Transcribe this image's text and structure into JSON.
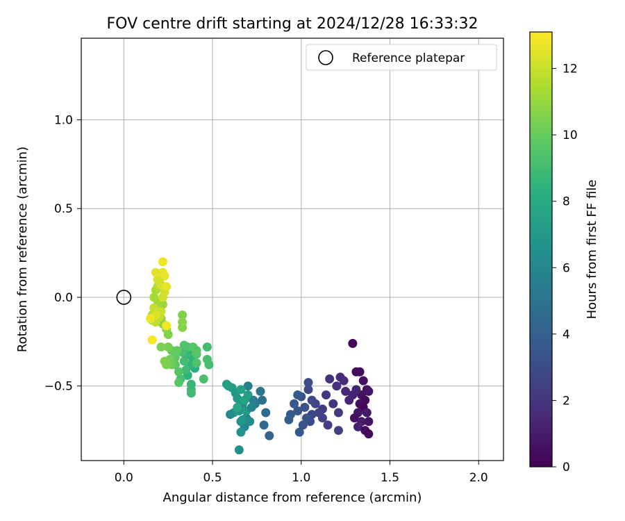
{
  "chart_data": {
    "type": "scatter",
    "title": "FOV centre drift starting at 2024/12/28 16:33:32",
    "xlabel": "Angular distance from reference (arcmin)",
    "ylabel": "Rotation from reference (arcmin)",
    "xlim": [
      -0.24,
      2.14
    ],
    "ylim": [
      -0.92,
      1.46
    ],
    "xticks": [
      "0.0",
      "0.5",
      "1.0",
      "1.5",
      "2.0"
    ],
    "yticks": [
      "−0.5",
      "0.0",
      "0.5",
      "1.0"
    ],
    "grid": true,
    "colormap": "viridis",
    "colorbar": {
      "label": "Hours from first FF file",
      "range": [
        0,
        13.1
      ],
      "ticks": [
        "0",
        "2",
        "4",
        "6",
        "8",
        "10",
        "12"
      ]
    },
    "legend": {
      "position": "top-right",
      "entries": [
        {
          "label": "Reference platepar",
          "marker": "open-circle"
        }
      ]
    },
    "reference_point": {
      "x": 0.0,
      "y": 0.0
    },
    "points": [
      [
        1.29,
        -0.26,
        0.2
      ],
      [
        1.31,
        -0.42,
        0.3
      ],
      [
        1.33,
        -0.42,
        0.4
      ],
      [
        1.35,
        -0.47,
        0.5
      ],
      [
        1.37,
        -0.52,
        0.4
      ],
      [
        1.34,
        -0.55,
        0.6
      ],
      [
        1.36,
        -0.58,
        0.3
      ],
      [
        1.38,
        -0.53,
        0.7
      ],
      [
        1.33,
        -0.6,
        0.5
      ],
      [
        1.35,
        -0.62,
        0.2
      ],
      [
        1.32,
        -0.65,
        0.8
      ],
      [
        1.37,
        -0.65,
        0.9
      ],
      [
        1.3,
        -0.68,
        0.6
      ],
      [
        1.34,
        -0.7,
        1.0
      ],
      [
        1.38,
        -0.7,
        0.7
      ],
      [
        1.32,
        -0.73,
        1.1
      ],
      [
        1.36,
        -0.75,
        0.4
      ],
      [
        1.38,
        -0.77,
        0.3
      ],
      [
        1.29,
        -0.55,
        1.2
      ],
      [
        1.31,
        -0.52,
        1.3
      ],
      [
        1.27,
        -0.58,
        1.4
      ],
      [
        1.25,
        -0.53,
        1.5
      ],
      [
        1.24,
        -0.47,
        1.6
      ],
      [
        1.22,
        -0.45,
        1.7
      ],
      [
        1.2,
        -0.5,
        1.8
      ],
      [
        1.16,
        -0.46,
        1.9
      ],
      [
        1.18,
        -0.6,
        2.0
      ],
      [
        1.14,
        -0.55,
        2.1
      ],
      [
        1.21,
        -0.65,
        2.2
      ],
      [
        1.12,
        -0.63,
        2.3
      ],
      [
        1.15,
        -0.72,
        2.4
      ],
      [
        1.21,
        -0.75,
        2.5
      ],
      [
        1.1,
        -0.65,
        2.6
      ],
      [
        1.08,
        -0.6,
        2.7
      ],
      [
        1.06,
        -0.66,
        2.8
      ],
      [
        1.05,
        -0.7,
        2.9
      ],
      [
        1.04,
        -0.52,
        3.0
      ],
      [
        1.04,
        -0.48,
        3.1
      ],
      [
        1.02,
        -0.62,
        3.2
      ],
      [
        1.03,
        -0.68,
        3.3
      ],
      [
        1.0,
        -0.56,
        3.4
      ],
      [
        0.98,
        -0.64,
        3.5
      ],
      [
        0.96,
        -0.6,
        3.6
      ],
      [
        0.99,
        -0.76,
        3.7
      ],
      [
        0.94,
        -0.66,
        3.8
      ],
      [
        0.93,
        -0.69,
        3.9
      ],
      [
        0.98,
        -0.55,
        3.7
      ],
      [
        1.01,
        -0.72,
        3.4
      ],
      [
        1.06,
        -0.58,
        2.9
      ],
      [
        1.12,
        -0.68,
        2.6
      ],
      [
        0.82,
        -0.78,
        4.2
      ],
      [
        0.79,
        -0.72,
        4.4
      ],
      [
        0.8,
        -0.65,
        4.6
      ],
      [
        0.78,
        -0.58,
        4.8
      ],
      [
        0.77,
        -0.53,
        5.0
      ],
      [
        0.74,
        -0.6,
        5.2
      ],
      [
        0.73,
        -0.58,
        5.4
      ],
      [
        0.7,
        -0.5,
        5.6
      ],
      [
        0.69,
        -0.68,
        5.8
      ],
      [
        0.68,
        -0.73,
        6.0
      ],
      [
        0.67,
        -0.6,
        6.2
      ],
      [
        0.66,
        -0.7,
        6.3
      ],
      [
        0.65,
        -0.86,
        6.5
      ],
      [
        0.66,
        -0.76,
        6.6
      ],
      [
        0.65,
        -0.64,
        6.7
      ],
      [
        0.63,
        -0.54,
        6.8
      ],
      [
        0.64,
        -0.57,
        6.9
      ],
      [
        0.62,
        -0.65,
        7.0
      ],
      [
        0.61,
        -0.51,
        7.1
      ],
      [
        0.58,
        -0.49,
        7.3
      ],
      [
        0.59,
        -0.5,
        7.4
      ],
      [
        0.66,
        -0.52,
        7.5
      ],
      [
        0.68,
        -0.58,
        7.6
      ],
      [
        0.69,
        -0.64,
        7.1
      ],
      [
        0.67,
        -0.69,
        6.9
      ],
      [
        0.71,
        -0.7,
        6.4
      ],
      [
        0.7,
        -0.55,
        7.2
      ],
      [
        0.64,
        -0.62,
        7.8
      ],
      [
        0.6,
        -0.66,
        6.1
      ],
      [
        0.72,
        -0.62,
        5.9
      ],
      [
        0.4,
        -0.4,
        8.2
      ],
      [
        0.39,
        -0.34,
        8.4
      ],
      [
        0.38,
        -0.3,
        8.6
      ],
      [
        0.37,
        -0.38,
        8.5
      ],
      [
        0.36,
        -0.44,
        8.3
      ],
      [
        0.35,
        -0.33,
        8.7
      ],
      [
        0.35,
        -0.41,
        8.9
      ],
      [
        0.34,
        -0.36,
        9.0
      ],
      [
        0.33,
        -0.31,
        9.1
      ],
      [
        0.32,
        -0.46,
        9.2
      ],
      [
        0.38,
        -0.52,
        8.8
      ],
      [
        0.38,
        -0.54,
        8.9
      ],
      [
        0.38,
        -0.49,
        8.7
      ],
      [
        0.36,
        -0.28,
        9.3
      ],
      [
        0.34,
        -0.27,
        9.4
      ],
      [
        0.31,
        -0.42,
        9.5
      ],
      [
        0.31,
        -0.48,
        9.6
      ],
      [
        0.29,
        -0.38,
        9.7
      ],
      [
        0.29,
        -0.34,
        9.8
      ],
      [
        0.3,
        -0.3,
        9.9
      ],
      [
        0.47,
        -0.28,
        9.0
      ],
      [
        0.48,
        -0.38,
        9.1
      ],
      [
        0.47,
        -0.35,
        9.2
      ],
      [
        0.45,
        -0.46,
        9.3
      ],
      [
        0.41,
        -0.32,
        9.4
      ],
      [
        0.41,
        -0.3,
        9.6
      ],
      [
        0.39,
        -0.28,
        9.5
      ],
      [
        0.41,
        -0.37,
        9.4
      ],
      [
        0.27,
        -0.3,
        10.0
      ],
      [
        0.27,
        -0.38,
        10.1
      ],
      [
        0.26,
        -0.35,
        10.2
      ],
      [
        0.25,
        -0.28,
        10.3
      ],
      [
        0.24,
        -0.38,
        10.4
      ],
      [
        0.23,
        -0.36,
        10.5
      ],
      [
        0.25,
        -0.21,
        10.6
      ],
      [
        0.24,
        -0.18,
        10.7
      ],
      [
        0.22,
        -0.15,
        10.8
      ],
      [
        0.21,
        -0.12,
        10.9
      ],
      [
        0.21,
        -0.28,
        10.4
      ],
      [
        0.33,
        -0.1,
        10.5
      ],
      [
        0.33,
        -0.17,
        10.6
      ],
      [
        0.33,
        -0.14,
        10.7
      ],
      [
        0.19,
        -0.08,
        10.8
      ],
      [
        0.2,
        -0.06,
        11.0
      ],
      [
        0.22,
        -0.04,
        11.1
      ],
      [
        0.19,
        -0.02,
        11.2
      ],
      [
        0.17,
        0.0,
        11.3
      ],
      [
        0.18,
        0.04,
        11.4
      ],
      [
        0.19,
        0.06,
        11.5
      ],
      [
        0.16,
        -0.1,
        11.6
      ],
      [
        0.16,
        -0.13,
        11.7
      ],
      [
        0.18,
        -0.14,
        11.8
      ],
      [
        0.2,
        -0.11,
        11.9
      ],
      [
        0.21,
        -0.08,
        12.0
      ],
      [
        0.22,
        0.0,
        12.1
      ],
      [
        0.23,
        0.03,
        12.2
      ],
      [
        0.21,
        0.07,
        12.3
      ],
      [
        0.19,
        0.1,
        12.4
      ],
      [
        0.21,
        0.12,
        12.5
      ],
      [
        0.22,
        0.14,
        12.6
      ],
      [
        0.23,
        0.12,
        12.7
      ],
      [
        0.22,
        0.2,
        12.8
      ],
      [
        0.24,
        -0.16,
        12.9
      ],
      [
        0.16,
        -0.24,
        13.0
      ],
      [
        0.18,
        0.14,
        12.5
      ],
      [
        0.2,
        0.09,
        12.2
      ],
      [
        0.24,
        0.06,
        12.6
      ],
      [
        0.17,
        -0.06,
        11.9
      ],
      [
        0.18,
        -0.1,
        12.4
      ],
      [
        0.15,
        -0.12,
        12.8
      ]
    ]
  }
}
